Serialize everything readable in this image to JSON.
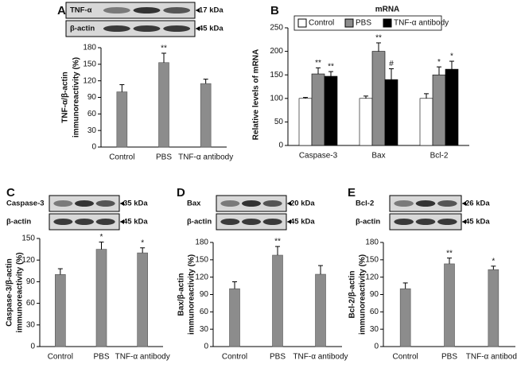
{
  "chart_data": [
    {
      "type": "bar",
      "panel": "A",
      "blot": [
        {
          "label": "TNF-α",
          "size": "17 kDa"
        },
        {
          "label": "β-actin",
          "size": "45 kDa"
        }
      ],
      "ylabel": [
        "TNF-α/β-actin",
        "immunoreactivity (%)"
      ],
      "categories": [
        "Control",
        "PBS",
        "TNF-α antibody"
      ],
      "values": [
        100,
        153,
        115
      ],
      "errors": [
        13,
        17,
        8
      ],
      "annotations": [
        null,
        "**",
        null
      ],
      "color": "#8c8c8c",
      "ylim": [
        0,
        180
      ],
      "yticks": [
        0,
        30,
        60,
        90,
        120,
        150,
        180
      ]
    },
    {
      "type": "grouped_bar",
      "panel": "B",
      "title": "mRNA",
      "ylabel": "Relative levels of mRNA",
      "categories": [
        "Caspase-3",
        "Bax",
        "Bcl-2"
      ],
      "series": [
        {
          "name": "Control",
          "color": "#ffffff",
          "values": [
            100,
            100,
            100
          ],
          "errors": [
            2,
            5,
            10
          ],
          "annotations": [
            null,
            null,
            null
          ]
        },
        {
          "name": "PBS",
          "color": "#8c8c8c",
          "values": [
            152,
            200,
            150
          ],
          "errors": [
            13,
            18,
            17
          ],
          "annotations": [
            "**",
            "**",
            "*"
          ]
        },
        {
          "name": "TNF-α antibody",
          "color": "#000000",
          "values": [
            147,
            140,
            162
          ],
          "errors": [
            10,
            23,
            17
          ],
          "annotations": [
            "**",
            "#",
            "*"
          ]
        }
      ],
      "ylim": [
        0,
        250
      ],
      "yticks": [
        0,
        50,
        100,
        150,
        200,
        250
      ]
    },
    {
      "type": "bar",
      "panel": "C",
      "blot": [
        {
          "label": "Caspase-3",
          "size": "35 kDa"
        },
        {
          "label": "β-actin",
          "size": "45 kDa"
        }
      ],
      "ylabel": [
        "Caspase-3/β-actin",
        "immunoreactivity (%)"
      ],
      "categories": [
        "Control",
        "PBS",
        "TNF-α antibody"
      ],
      "values": [
        100,
        135,
        130
      ],
      "errors": [
        8,
        10,
        7
      ],
      "annotations": [
        null,
        "*",
        "*"
      ],
      "color": "#8c8c8c",
      "ylim": [
        0,
        150
      ],
      "yticks": [
        0,
        30,
        60,
        90,
        120,
        150
      ]
    },
    {
      "type": "bar",
      "panel": "D",
      "blot": [
        {
          "label": "Bax",
          "size": "20 kDa"
        },
        {
          "label": "β-actin",
          "size": "45 kDa"
        }
      ],
      "ylabel": [
        "Bax/β-actin",
        "immunoreactivity (%)"
      ],
      "categories": [
        "Control",
        "PBS",
        "TNF-α antibody"
      ],
      "values": [
        100,
        158,
        125
      ],
      "errors": [
        12,
        15,
        15
      ],
      "annotations": [
        null,
        "**",
        null
      ],
      "color": "#8c8c8c",
      "ylim": [
        0,
        180
      ],
      "yticks": [
        0,
        30,
        60,
        90,
        120,
        150,
        180
      ]
    },
    {
      "type": "bar",
      "panel": "E",
      "blot": [
        {
          "label": "Bcl-2",
          "size": "26 kDa"
        },
        {
          "label": "β-actin",
          "size": "45 kDa"
        }
      ],
      "ylabel": [
        "Bcl-2/β-actin",
        "immunoreactivity (%)"
      ],
      "categories": [
        "Control",
        "PBS",
        "TNF-α antibody"
      ],
      "values": [
        100,
        143,
        133
      ],
      "errors": [
        10,
        10,
        6
      ],
      "annotations": [
        null,
        "**",
        "*"
      ],
      "color": "#8c8c8c",
      "ylim": [
        0,
        180
      ],
      "yticks": [
        0,
        30,
        60,
        90,
        120,
        150,
        180
      ]
    }
  ]
}
